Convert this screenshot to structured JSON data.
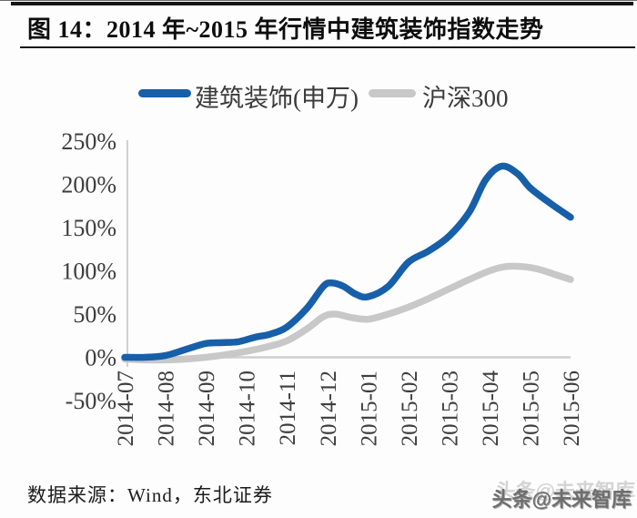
{
  "figure": {
    "title": "图 14：2014 年~2015 年行情中建筑装饰指数走势",
    "source_note": "数据来源：Wind，东北证券",
    "watermark": "头条@未来智库"
  },
  "chart_data": {
    "type": "line",
    "title": "2014年~2015年行情中建筑装饰指数走势",
    "categories": [
      "2014-07",
      "2014-08",
      "2014-09",
      "2014-10",
      "2014-11",
      "2014-12",
      "2015-01",
      "2015-02",
      "2015-03",
      "2015-04",
      "2015-05",
      "2015-06"
    ],
    "y_ticks": [
      "250%",
      "200%",
      "150%",
      "100%",
      "50%",
      "0%",
      "-50%"
    ],
    "ylim": [
      -50,
      250
    ],
    "y_tick_step": 50,
    "y_unit": "%",
    "grid": "zero-line-only",
    "legend_position": "top-center",
    "axis_color": "#c3c6ca",
    "zero_line_color": "#cfcfcf",
    "series": [
      {
        "name": "建筑装饰(申万)",
        "color": "#175fa9",
        "monthly_values": [
          0,
          2,
          16,
          22,
          35,
          84,
          70,
          110,
          140,
          218,
          196,
          162
        ],
        "shape_points": [
          [
            0,
            0
          ],
          [
            0.5,
            0
          ],
          [
            1,
            2
          ],
          [
            1.5,
            9
          ],
          [
            2,
            16
          ],
          [
            2.4,
            17
          ],
          [
            2.8,
            18
          ],
          [
            3.2,
            23
          ],
          [
            3.6,
            27
          ],
          [
            4,
            35
          ],
          [
            4.5,
            57
          ],
          [
            4.9,
            82
          ],
          [
            5.1,
            86
          ],
          [
            5.4,
            82
          ],
          [
            5.7,
            73
          ],
          [
            6,
            70
          ],
          [
            6.5,
            82
          ],
          [
            7,
            110
          ],
          [
            7.5,
            123
          ],
          [
            8,
            140
          ],
          [
            8.5,
            168
          ],
          [
            8.9,
            205
          ],
          [
            9.3,
            221
          ],
          [
            9.7,
            212
          ],
          [
            10,
            196
          ],
          [
            10.5,
            178
          ],
          [
            11,
            162
          ]
        ]
      },
      {
        "name": "沪深300",
        "color": "#c8c8c8",
        "monthly_values": [
          -2,
          -3,
          0,
          7,
          19,
          47,
          44,
          58,
          79,
          100,
          103,
          90
        ],
        "shape_points": [
          [
            0,
            -2
          ],
          [
            0.5,
            -3
          ],
          [
            1,
            -3
          ],
          [
            1.5,
            -2
          ],
          [
            2,
            0
          ],
          [
            2.5,
            3
          ],
          [
            3,
            7
          ],
          [
            3.5,
            12
          ],
          [
            4,
            19
          ],
          [
            4.5,
            33
          ],
          [
            4.9,
            47
          ],
          [
            5.2,
            50
          ],
          [
            5.6,
            46
          ],
          [
            6,
            44
          ],
          [
            6.5,
            50
          ],
          [
            7,
            58
          ],
          [
            7.5,
            68
          ],
          [
            8,
            79
          ],
          [
            8.5,
            90
          ],
          [
            9,
            100
          ],
          [
            9.4,
            105
          ],
          [
            9.8,
            105
          ],
          [
            10.2,
            102
          ],
          [
            10.6,
            96
          ],
          [
            11,
            90
          ]
        ]
      }
    ]
  }
}
